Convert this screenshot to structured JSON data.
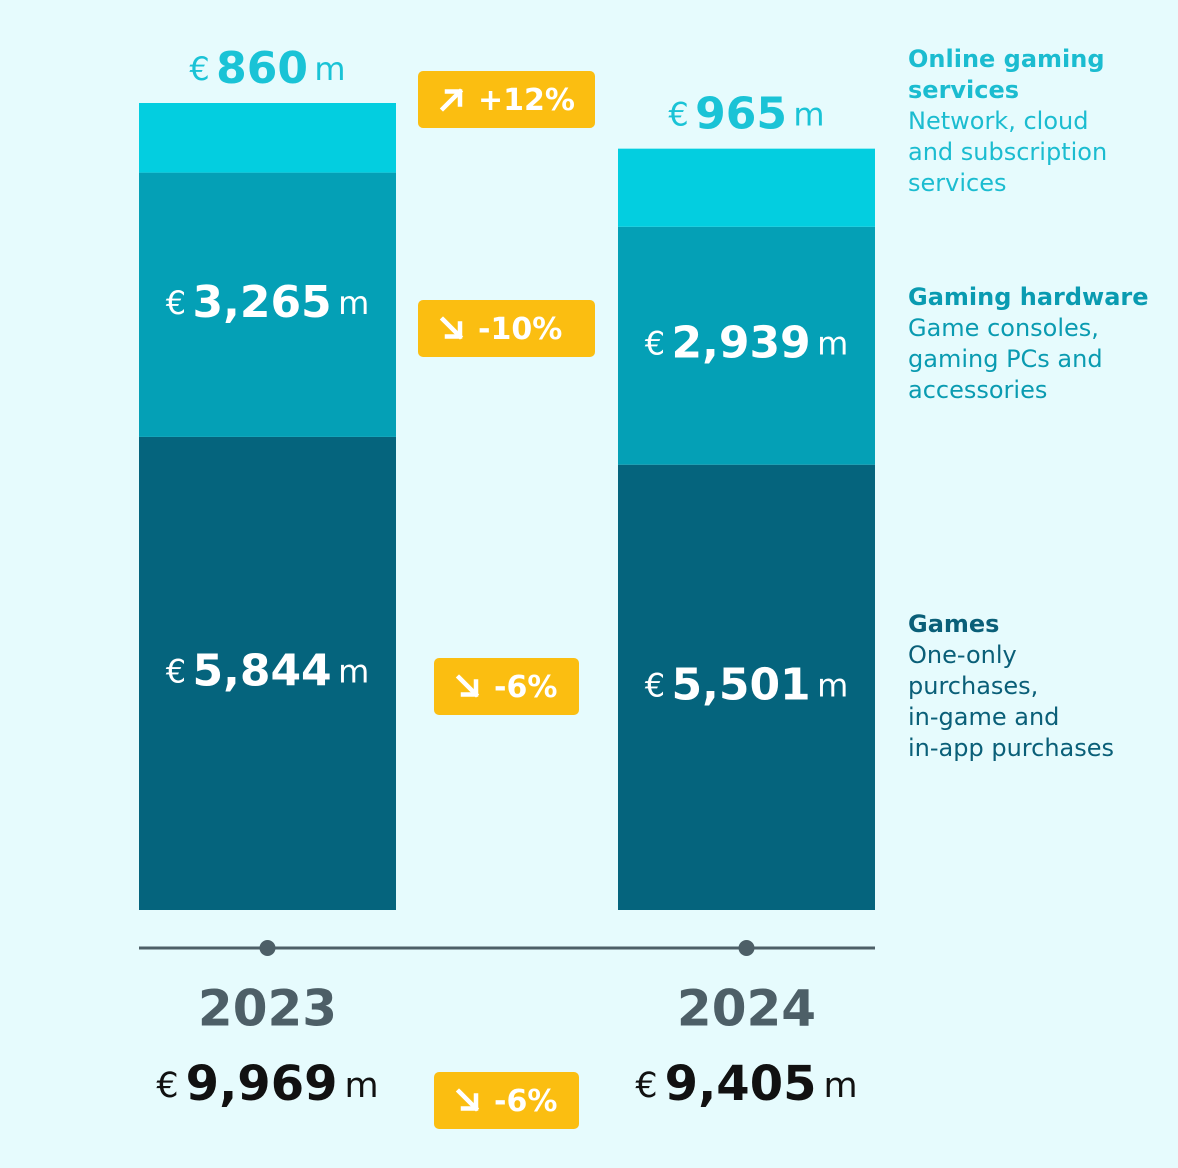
{
  "chart_data": {
    "type": "bar",
    "stacked": true,
    "categories": [
      "2023",
      "2024"
    ],
    "series": [
      {
        "name": "Games",
        "values": [
          5844,
          5501
        ],
        "labels": [
          "5,844",
          "5,501"
        ],
        "color": "#05647d"
      },
      {
        "name": "Gaming hardware",
        "values": [
          3265,
          2939
        ],
        "labels": [
          "3,265",
          "2,939"
        ],
        "color": "#04a0b6"
      },
      {
        "name": "Online gaming services",
        "values": [
          860,
          965
        ],
        "labels": [
          "860",
          "965"
        ],
        "color": "#03cee0"
      }
    ],
    "totals": {
      "values": [
        9969,
        9405
      ],
      "labels": [
        "9,969",
        "9,405"
      ]
    },
    "currency_symbol": "€",
    "unit_suffix": "m",
    "changes": [
      {
        "text": "+12%",
        "direction": "up"
      },
      {
        "text": "-10%",
        "direction": "down"
      },
      {
        "text": "-6%",
        "direction": "down"
      },
      {
        "text": "-6%",
        "direction": "down"
      }
    ],
    "legend": [
      {
        "title": "Online gaming services",
        "description": "Network, cloud\nand subscription\nservices",
        "color": "#1bbcd0"
      },
      {
        "title": "Gaming hardware",
        "description": "Game consoles,\ngaming PCs and\naccessories",
        "color": "#0a9bb1"
      },
      {
        "title": "Games",
        "description": "One-only\npurchases,\nin-game and\nin-app purchases",
        "color": "#0a5f78"
      }
    ],
    "colors": {
      "background": "#e6fbfd",
      "badge": "#fbbe11",
      "axis": "#4d5f67",
      "year_label": "#4d5f67",
      "total_label": "#111111"
    }
  }
}
